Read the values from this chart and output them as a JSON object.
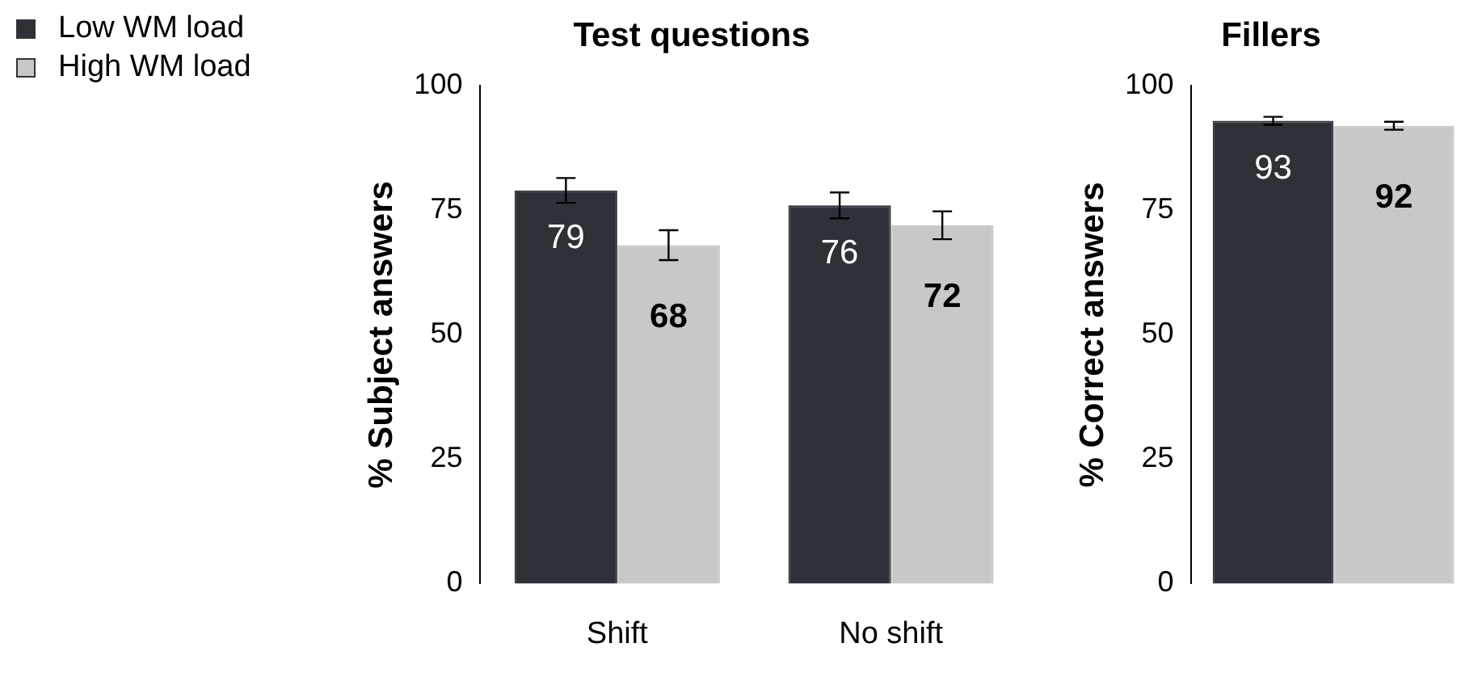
{
  "chart_data": [
    {
      "type": "bar",
      "title": "Test questions",
      "ylabel": "% Subject answers",
      "categories": [
        "Shift",
        "No shift"
      ],
      "series": [
        {
          "name": "Low WM load",
          "color": "#2e3138",
          "values": [
            79,
            76
          ],
          "errors": [
            2.5,
            2.6
          ]
        },
        {
          "name": "High WM load",
          "color": "#c8c8c8",
          "values": [
            68,
            72
          ],
          "errors": [
            3,
            2.8
          ]
        }
      ],
      "ylim": [
        0,
        100
      ],
      "yticks": [
        0,
        25,
        50,
        75,
        100
      ],
      "grid": false,
      "legend": "top left",
      "data_labels": true
    },
    {
      "type": "bar",
      "title": "Fillers",
      "ylabel": "% Correct answers",
      "categories": [
        null
      ],
      "series": [
        {
          "color": "#2e3138",
          "values": [
            93
          ],
          "errors": [
            0.8
          ]
        },
        {
          "color": "#c8c8c8",
          "values": [
            92
          ],
          "errors": [
            0.8
          ]
        }
      ],
      "ylim": [
        0,
        100
      ],
      "yticks": [
        0,
        25,
        50,
        75,
        100
      ],
      "grid": false,
      "data_labels": true
    }
  ]
}
